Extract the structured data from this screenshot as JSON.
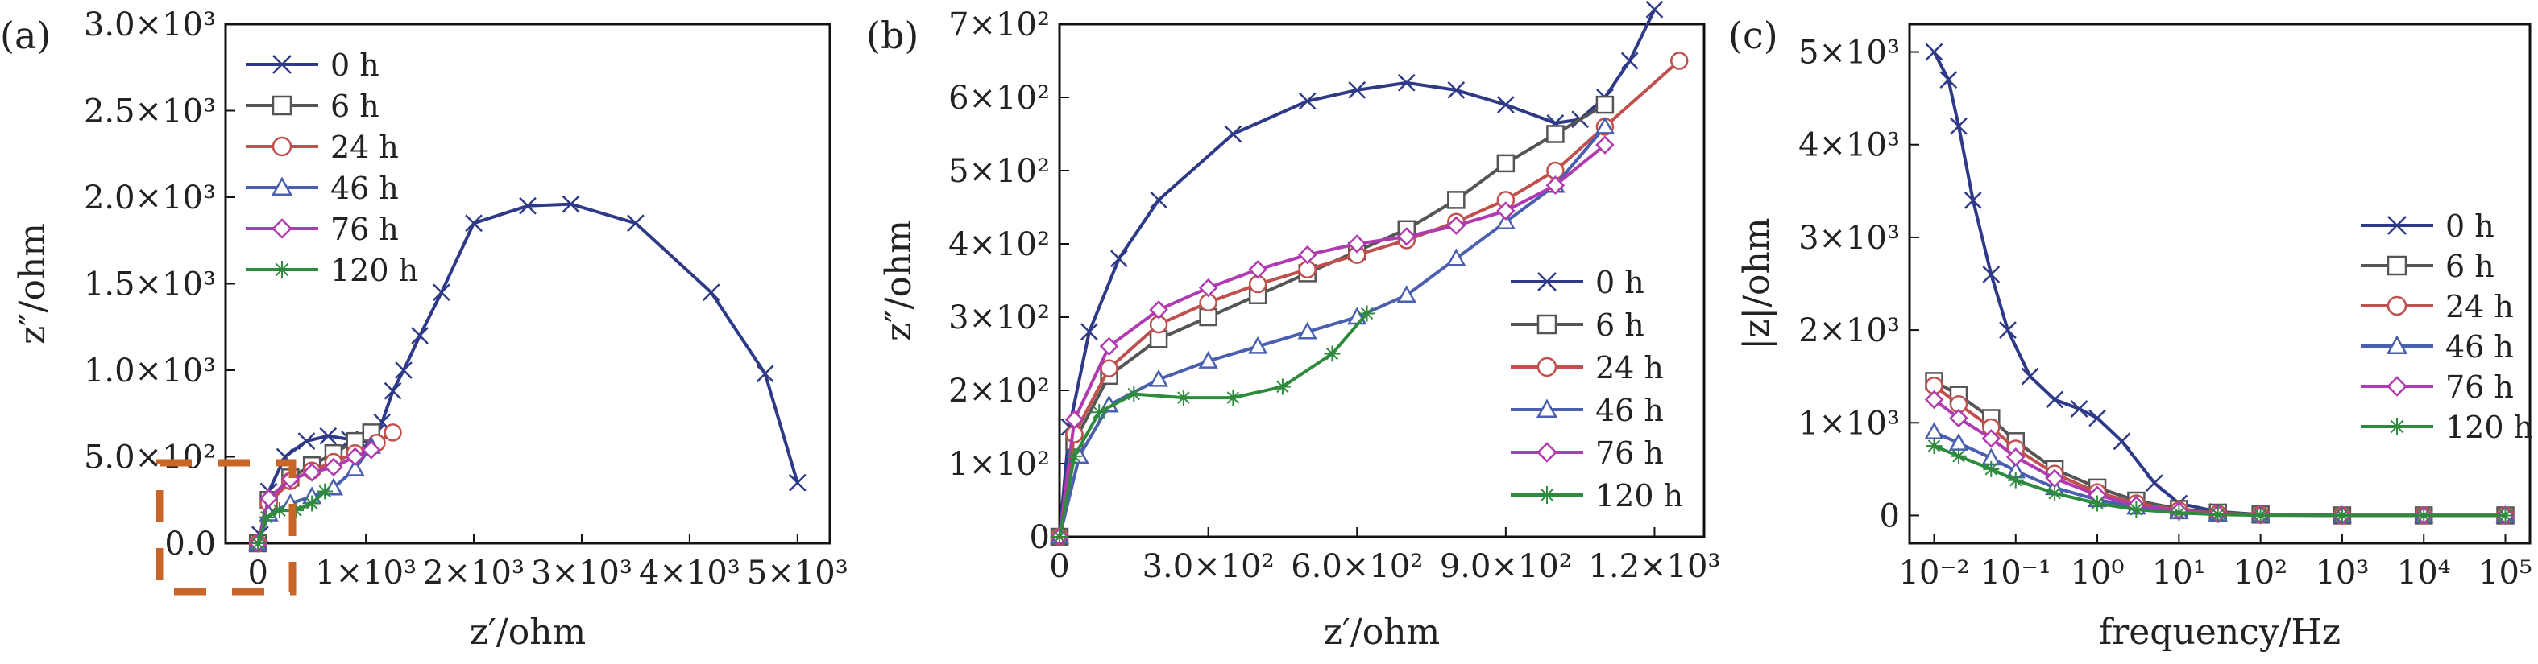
{
  "figure": {
    "panel_labels": [
      "(a)",
      "(b)",
      "(c)"
    ],
    "colors": {
      "0 h": "#2e3a87",
      "6 h": "#555555",
      "24 h": "#c0504d",
      "46 h": "#4a5fb0",
      "76 h": "#b03ab0",
      "120 h": "#2e8b3d",
      "inset_box": "#c8662a"
    }
  },
  "chart_data": [
    {
      "type": "line",
      "panel": "(a)",
      "xlabel": "z′/ohm",
      "ylabel": "z″/ohm",
      "xlim": [
        -300,
        5300
      ],
      "ylim": [
        0,
        3000
      ],
      "xticks": [
        {
          "v": 0,
          "label": "0"
        },
        {
          "v": 1000,
          "label": "1×10³"
        },
        {
          "v": 2000,
          "label": "2×10³"
        },
        {
          "v": 3000,
          "label": "3×10³"
        },
        {
          "v": 4000,
          "label": "4×10³"
        },
        {
          "v": 5000,
          "label": "5×10³"
        }
      ],
      "yticks": [
        {
          "v": 0,
          "label": "0.0"
        },
        {
          "v": 500,
          "label": "5.0×10²"
        },
        {
          "v": 1000,
          "label": "1.0×10³"
        },
        {
          "v": 1500,
          "label": "1.5×10³"
        },
        {
          "v": 2000,
          "label": "2.0×10³"
        },
        {
          "v": 2500,
          "label": "2.5×10³"
        },
        {
          "v": 3000,
          "label": "3.0×10³"
        }
      ],
      "legend": "top-left",
      "series": [
        {
          "name": "0 h",
          "marker": "x",
          "x": [
            20,
            100,
            250,
            450,
            650,
            850,
            950,
            1050,
            1100,
            1150,
            1250,
            1350,
            1500,
            1700,
            2000,
            2500,
            2900,
            3500,
            4200,
            4700,
            5000
          ],
          "y": [
            50,
            300,
            500,
            590,
            620,
            600,
            580,
            600,
            640,
            700,
            880,
            1000,
            1200,
            1450,
            1850,
            1950,
            1960,
            1850,
            1450,
            980,
            350
          ]
        },
        {
          "name": "6 h",
          "marker": "square",
          "x": [
            0,
            100,
            300,
            500,
            700,
            900,
            1050
          ],
          "y": [
            0,
            250,
            380,
            450,
            520,
            590,
            640
          ]
        },
        {
          "name": "24 h",
          "marker": "circle",
          "x": [
            0,
            100,
            300,
            500,
            700,
            900,
            1100,
            1250
          ],
          "y": [
            0,
            230,
            360,
            420,
            470,
            520,
            580,
            640
          ]
        },
        {
          "name": "46 h",
          "marker": "triangle",
          "x": [
            0,
            100,
            300,
            500,
            700,
            900,
            1050
          ],
          "y": [
            0,
            170,
            230,
            270,
            320,
            430,
            560
          ]
        },
        {
          "name": "76 h",
          "marker": "diamond",
          "x": [
            0,
            100,
            300,
            500,
            700,
            900,
            1050
          ],
          "y": [
            0,
            260,
            370,
            410,
            440,
            500,
            540
          ]
        },
        {
          "name": "120 h",
          "marker": "star",
          "x": [
            0,
            80,
            200,
            350,
            500,
            620
          ],
          "y": [
            0,
            150,
            190,
            190,
            230,
            300
          ]
        }
      ]
    },
    {
      "type": "line",
      "panel": "(b)",
      "xlabel": "z′/ohm",
      "ylabel": "z″/ohm",
      "xlim": [
        0,
        1300
      ],
      "ylim": [
        0,
        700
      ],
      "xticks": [
        {
          "v": 0,
          "label": "0"
        },
        {
          "v": 300,
          "label": "3.0×10²"
        },
        {
          "v": 600,
          "label": "6.0×10²"
        },
        {
          "v": 900,
          "label": "9.0×10²"
        },
        {
          "v": 1200,
          "label": "1.2×10³"
        }
      ],
      "yticks": [
        {
          "v": 0,
          "label": "0"
        },
        {
          "v": 100,
          "label": "1×10²"
        },
        {
          "v": 200,
          "label": "2×10²"
        },
        {
          "v": 300,
          "label": "3×10²"
        },
        {
          "v": 400,
          "label": "4×10²"
        },
        {
          "v": 500,
          "label": "5×10²"
        },
        {
          "v": 600,
          "label": "6×10²"
        },
        {
          "v": 700,
          "label": "7×10²"
        }
      ],
      "legend": "center-right",
      "series": [
        {
          "name": "0 h",
          "marker": "x",
          "x": [
            0,
            20,
            60,
            120,
            200,
            350,
            500,
            600,
            700,
            800,
            900,
            1000,
            1050,
            1100,
            1150,
            1200
          ],
          "y": [
            0,
            150,
            280,
            380,
            460,
            550,
            595,
            610,
            620,
            610,
            590,
            565,
            570,
            600,
            650,
            720
          ]
        },
        {
          "name": "6 h",
          "marker": "square",
          "x": [
            0,
            30,
            100,
            200,
            300,
            400,
            500,
            600,
            700,
            800,
            900,
            1000,
            1100
          ],
          "y": [
            0,
            130,
            220,
            270,
            300,
            330,
            360,
            390,
            420,
            460,
            510,
            550,
            590
          ]
        },
        {
          "name": "24 h",
          "marker": "circle",
          "x": [
            0,
            30,
            100,
            200,
            300,
            400,
            500,
            600,
            700,
            800,
            900,
            1000,
            1100,
            1250
          ],
          "y": [
            0,
            140,
            230,
            290,
            320,
            345,
            365,
            385,
            405,
            430,
            460,
            500,
            560,
            650
          ]
        },
        {
          "name": "46 h",
          "marker": "triangle",
          "x": [
            0,
            40,
            100,
            200,
            300,
            400,
            500,
            600,
            700,
            800,
            900,
            1000,
            1100
          ],
          "y": [
            0,
            110,
            180,
            215,
            240,
            260,
            280,
            300,
            330,
            380,
            430,
            480,
            560
          ]
        },
        {
          "name": "76 h",
          "marker": "diamond",
          "x": [
            0,
            30,
            100,
            200,
            300,
            400,
            500,
            600,
            700,
            800,
            900,
            1000,
            1100
          ],
          "y": [
            0,
            160,
            260,
            310,
            340,
            365,
            385,
            400,
            410,
            425,
            445,
            480,
            535
          ]
        },
        {
          "name": "120 h",
          "marker": "star",
          "x": [
            0,
            30,
            80,
            150,
            250,
            350,
            450,
            550,
            620
          ],
          "y": [
            0,
            110,
            170,
            195,
            190,
            190,
            205,
            250,
            305
          ]
        }
      ]
    },
    {
      "type": "line",
      "panel": "(c)",
      "xlabel": "frequency/Hz",
      "ylabel": "|z|/ohm",
      "x_scale": "log",
      "xlim": [
        0.005,
        200000
      ],
      "ylim": [
        -300,
        5300
      ],
      "xticks": [
        {
          "v": 0.01,
          "label": "10⁻²"
        },
        {
          "v": 0.1,
          "label": "10⁻¹"
        },
        {
          "v": 1,
          "label": "10⁰"
        },
        {
          "v": 10,
          "label": "10¹"
        },
        {
          "v": 100,
          "label": "10²"
        },
        {
          "v": 1000,
          "label": "10³"
        },
        {
          "v": 10000,
          "label": "10⁴"
        },
        {
          "v": 100000,
          "label": "10⁵"
        }
      ],
      "yticks": [
        {
          "v": 0,
          "label": "0"
        },
        {
          "v": 1000,
          "label": "1×10³"
        },
        {
          "v": 2000,
          "label": "2×10³"
        },
        {
          "v": 3000,
          "label": "3×10³"
        },
        {
          "v": 4000,
          "label": "4×10³"
        },
        {
          "v": 5000,
          "label": "5×10³"
        }
      ],
      "legend": "center-right",
      "series": [
        {
          "name": "0 h",
          "marker": "x",
          "x": [
            0.01,
            0.015,
            0.02,
            0.03,
            0.05,
            0.08,
            0.15,
            0.3,
            0.6,
            1,
            2,
            5,
            10,
            30,
            100,
            1000,
            10000,
            100000
          ],
          "y": [
            5000,
            4700,
            4200,
            3400,
            2600,
            2000,
            1500,
            1250,
            1150,
            1050,
            800,
            350,
            130,
            40,
            10,
            0,
            0,
            0
          ]
        },
        {
          "name": "6 h",
          "marker": "square",
          "x": [
            0.01,
            0.02,
            0.05,
            0.1,
            0.3,
            1,
            3,
            10,
            30,
            100,
            1000,
            10000,
            100000
          ],
          "y": [
            1450,
            1300,
            1050,
            800,
            500,
            300,
            160,
            70,
            30,
            10,
            0,
            0,
            0
          ]
        },
        {
          "name": "24 h",
          "marker": "circle",
          "x": [
            0.01,
            0.02,
            0.05,
            0.1,
            0.3,
            1,
            3,
            10,
            30,
            100,
            1000,
            10000,
            100000
          ],
          "y": [
            1400,
            1200,
            950,
            720,
            450,
            250,
            130,
            55,
            20,
            8,
            0,
            0,
            0
          ]
        },
        {
          "name": "46 h",
          "marker": "triangle",
          "x": [
            0.01,
            0.02,
            0.05,
            0.1,
            0.3,
            1,
            3,
            10,
            30,
            100,
            1000,
            10000,
            100000
          ],
          "y": [
            900,
            780,
            620,
            480,
            300,
            170,
            90,
            40,
            15,
            5,
            0,
            0,
            0
          ]
        },
        {
          "name": "76 h",
          "marker": "diamond",
          "x": [
            0.01,
            0.02,
            0.05,
            0.1,
            0.3,
            1,
            3,
            10,
            30,
            100,
            1000,
            10000,
            100000
          ],
          "y": [
            1250,
            1050,
            830,
            630,
            400,
            220,
            110,
            50,
            18,
            6,
            0,
            0,
            0
          ]
        },
        {
          "name": "120 h",
          "marker": "star",
          "x": [
            0.01,
            0.02,
            0.05,
            0.1,
            0.3,
            1,
            3,
            10,
            30,
            100,
            1000,
            10000,
            100000
          ],
          "y": [
            750,
            640,
            500,
            380,
            240,
            130,
            65,
            28,
            10,
            3,
            0,
            0,
            0
          ]
        }
      ]
    }
  ]
}
